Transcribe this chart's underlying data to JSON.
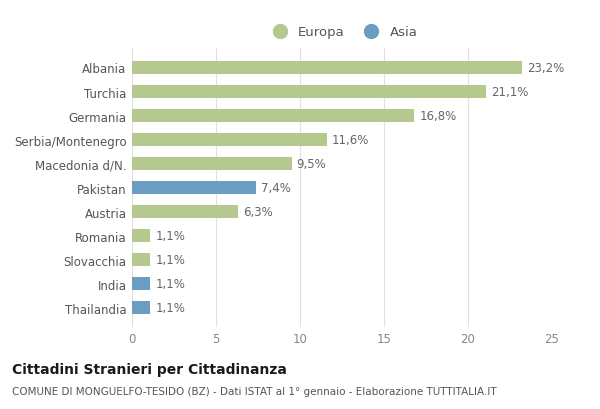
{
  "categories": [
    "Albania",
    "Turchia",
    "Germania",
    "Serbia/Montenegro",
    "Macedonia d/N.",
    "Pakistan",
    "Austria",
    "Romania",
    "Slovacchia",
    "India",
    "Thailandia"
  ],
  "values": [
    23.2,
    21.1,
    16.8,
    11.6,
    9.5,
    7.4,
    6.3,
    1.1,
    1.1,
    1.1,
    1.1
  ],
  "labels": [
    "23,2%",
    "21,1%",
    "16,8%",
    "11,6%",
    "9,5%",
    "7,4%",
    "6,3%",
    "1,1%",
    "1,1%",
    "1,1%",
    "1,1%"
  ],
  "colors": [
    "#b5c98e",
    "#b5c98e",
    "#b5c98e",
    "#b5c98e",
    "#b5c98e",
    "#6b9dc2",
    "#b5c98e",
    "#b5c98e",
    "#b5c98e",
    "#6b9dc2",
    "#6b9dc2"
  ],
  "europa_color": "#b5c98e",
  "asia_color": "#6b9dc2",
  "title": "Cittadini Stranieri per Cittadinanza",
  "subtitle": "COMUNE DI MONGUELFO-TESIDO (BZ) - Dati ISTAT al 1° gennaio - Elaborazione TUTTITALIA.IT",
  "xlim": [
    0,
    25
  ],
  "xticks": [
    0,
    5,
    10,
    15,
    20,
    25
  ],
  "bg_color": "#ffffff",
  "grid_color": "#e0e0e0",
  "bar_height": 0.55,
  "label_fontsize": 8.5,
  "title_fontsize": 10,
  "subtitle_fontsize": 7.5,
  "category_fontsize": 8.5,
  "legend_fontsize": 9.5
}
